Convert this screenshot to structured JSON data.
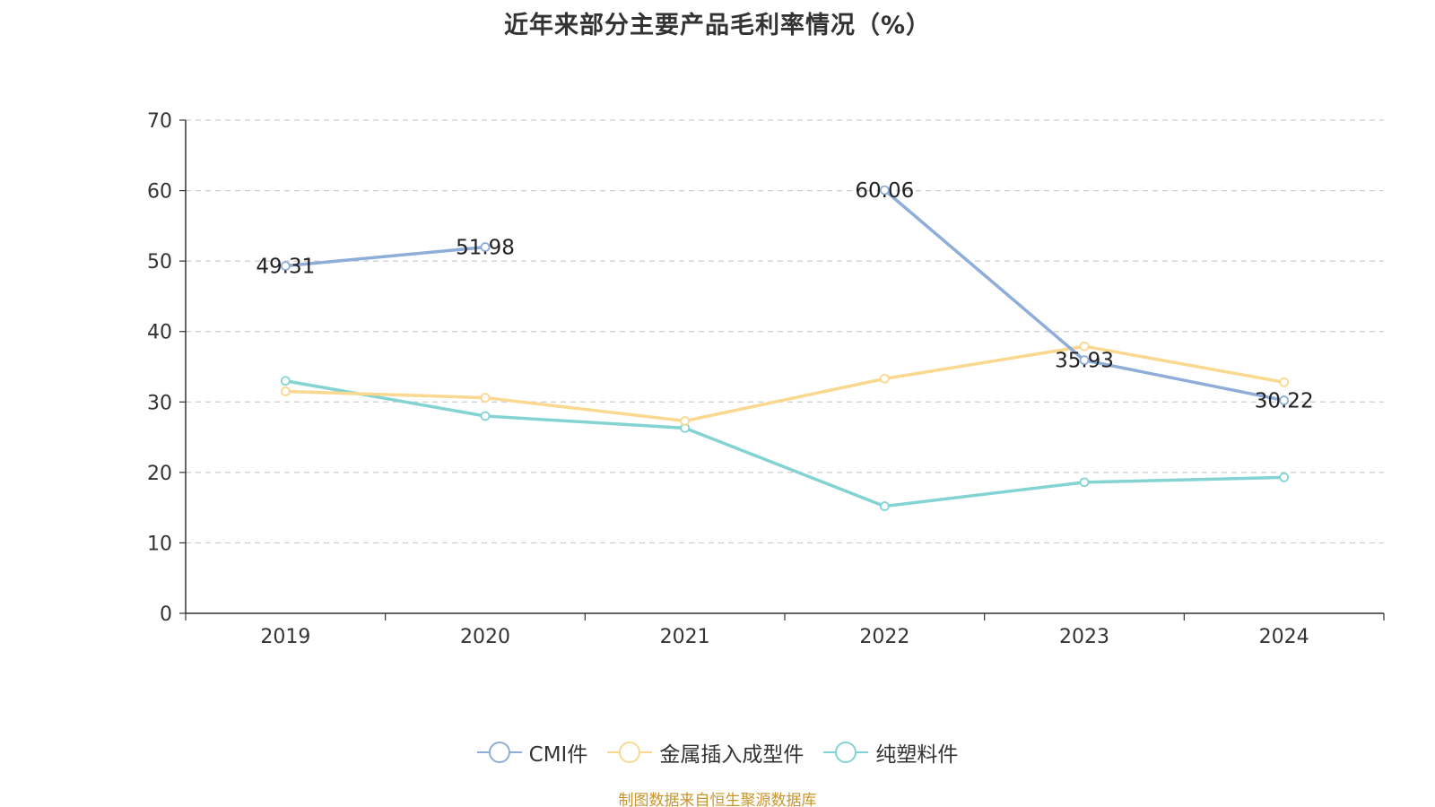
{
  "chart_data": {
    "type": "line",
    "title": "近年来部分主要产品毛利率情况（%）",
    "categories": [
      "2019",
      "2020",
      "2021",
      "2022",
      "2023",
      "2024"
    ],
    "y_ticks": [
      "0",
      "10",
      "20",
      "30",
      "40",
      "50",
      "60",
      "70"
    ],
    "ylim": [
      0,
      70
    ],
    "grid": "horizontal-dashed",
    "legend_position": "bottom-center",
    "series": [
      {
        "name": "CMI件",
        "color": "#8eadd8",
        "values": [
          49.31,
          51.98,
          null,
          60.06,
          35.93,
          30.22
        ],
        "labels": [
          "49.31",
          "51.98",
          "",
          "60.06",
          "35.93",
          "30.22"
        ]
      },
      {
        "name": "金属插入成型件",
        "color": "#fad88f",
        "values": [
          31.5,
          30.6,
          27.3,
          33.3,
          37.9,
          32.8
        ],
        "labels": []
      },
      {
        "name": "纯塑料件",
        "color": "#84d3d3",
        "values": [
          33.0,
          28.0,
          26.3,
          15.2,
          18.6,
          19.3
        ],
        "labels": []
      }
    ],
    "source": "制图数据来自恒生聚源数据库"
  }
}
